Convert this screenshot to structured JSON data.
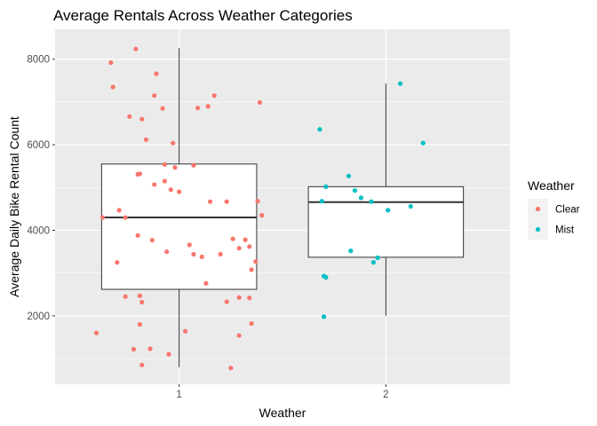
{
  "chart_data": {
    "type": "boxplot",
    "title": "Average Rentals Across Weather Categories",
    "xlabel": "Weather",
    "ylabel": "Average Daily Bike Rental Count",
    "categories": [
      "1",
      "2"
    ],
    "xlim": [
      0.4,
      2.6
    ],
    "ylim": [
      400,
      8700
    ],
    "yticks": [
      2000,
      4000,
      6000,
      8000
    ],
    "grid": true,
    "legend": {
      "title": "Weather",
      "position": "right",
      "entries": [
        {
          "label": "Clear",
          "color": "#f8766d"
        },
        {
          "label": "Mist",
          "color": "#00bfc4"
        }
      ]
    },
    "boxes": [
      {
        "category": "1",
        "min": 800,
        "q1": 2620,
        "median": 4300,
        "q3": 5550,
        "max": 8260
      },
      {
        "category": "2",
        "min": 2000,
        "q1": 3370,
        "median": 4660,
        "q3": 5020,
        "max": 7430
      }
    ],
    "series": [
      {
        "name": "Clear",
        "color": "#f8766d",
        "points": [
          [
            0.79,
            8240
          ],
          [
            0.67,
            7920
          ],
          [
            0.68,
            7350
          ],
          [
            0.89,
            7660
          ],
          [
            0.88,
            7150
          ],
          [
            1.17,
            7150
          ],
          [
            1.39,
            6990
          ],
          [
            0.92,
            6850
          ],
          [
            1.09,
            6860
          ],
          [
            1.14,
            6900
          ],
          [
            0.76,
            6660
          ],
          [
            0.82,
            6600
          ],
          [
            0.84,
            6120
          ],
          [
            0.97,
            6040
          ],
          [
            0.81,
            5320
          ],
          [
            0.8,
            5310
          ],
          [
            0.93,
            5540
          ],
          [
            0.98,
            5470
          ],
          [
            1.07,
            5520
          ],
          [
            0.88,
            5070
          ],
          [
            0.93,
            5150
          ],
          [
            0.96,
            4950
          ],
          [
            1.0,
            4900
          ],
          [
            1.15,
            4670
          ],
          [
            1.23,
            4670
          ],
          [
            1.38,
            4680
          ],
          [
            0.71,
            4470
          ],
          [
            0.63,
            4300
          ],
          [
            0.74,
            4300
          ],
          [
            1.4,
            4350
          ],
          [
            0.8,
            3880
          ],
          [
            0.87,
            3770
          ],
          [
            1.26,
            3800
          ],
          [
            1.32,
            3780
          ],
          [
            1.34,
            3620
          ],
          [
            1.05,
            3660
          ],
          [
            0.94,
            3500
          ],
          [
            1.07,
            3440
          ],
          [
            1.11,
            3380
          ],
          [
            1.2,
            3440
          ],
          [
            1.29,
            3580
          ],
          [
            1.37,
            3270
          ],
          [
            0.7,
            3250
          ],
          [
            1.35,
            3080
          ],
          [
            1.13,
            2760
          ],
          [
            0.74,
            2450
          ],
          [
            0.81,
            2470
          ],
          [
            0.82,
            2320
          ],
          [
            1.23,
            2330
          ],
          [
            1.29,
            2430
          ],
          [
            1.34,
            2420
          ],
          [
            0.81,
            1800
          ],
          [
            1.35,
            1820
          ],
          [
            1.03,
            1640
          ],
          [
            1.29,
            1540
          ],
          [
            0.6,
            1600
          ],
          [
            0.78,
            1220
          ],
          [
            0.86,
            1230
          ],
          [
            0.95,
            1100
          ],
          [
            0.82,
            850
          ],
          [
            1.25,
            780
          ]
        ]
      },
      {
        "name": "Mist",
        "color": "#00bfc4",
        "points": [
          [
            2.07,
            7430
          ],
          [
            1.68,
            6360
          ],
          [
            2.18,
            6040
          ],
          [
            1.82,
            5270
          ],
          [
            1.69,
            4680
          ],
          [
            1.71,
            5020
          ],
          [
            1.85,
            4930
          ],
          [
            1.88,
            4760
          ],
          [
            1.93,
            4670
          ],
          [
            2.01,
            4470
          ],
          [
            2.12,
            4560
          ],
          [
            1.83,
            3520
          ],
          [
            1.96,
            3360
          ],
          [
            1.94,
            3250
          ],
          [
            1.7,
            2930
          ],
          [
            1.71,
            2900
          ],
          [
            1.7,
            1980
          ]
        ]
      }
    ]
  }
}
